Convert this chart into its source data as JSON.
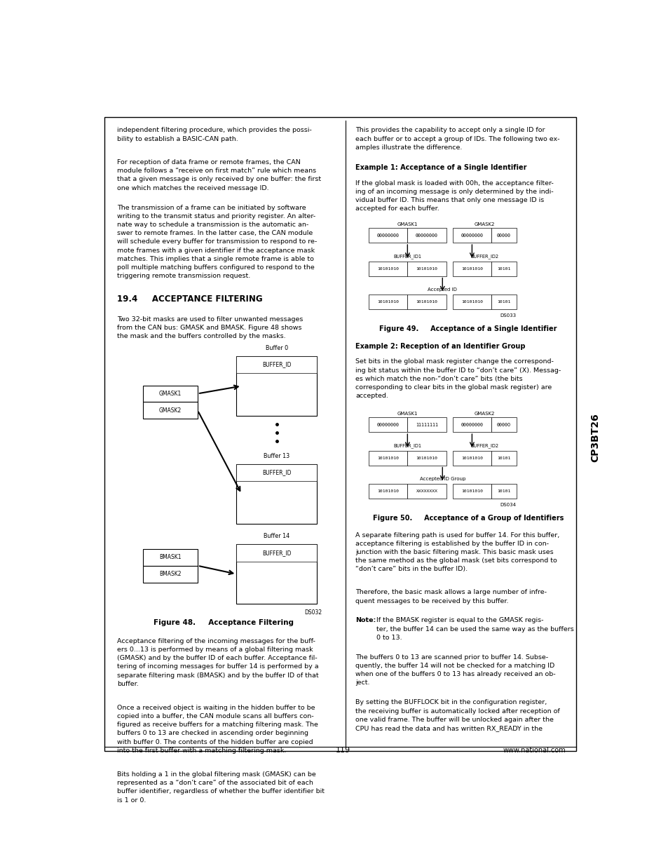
{
  "page_bg": "#ffffff",
  "border_color": "#000000",
  "text_color": "#000000",
  "page_width": 9.54,
  "page_height": 12.35,
  "sidebar_label": "CP3BT26",
  "page_number": "119",
  "website": "www.national.com"
}
